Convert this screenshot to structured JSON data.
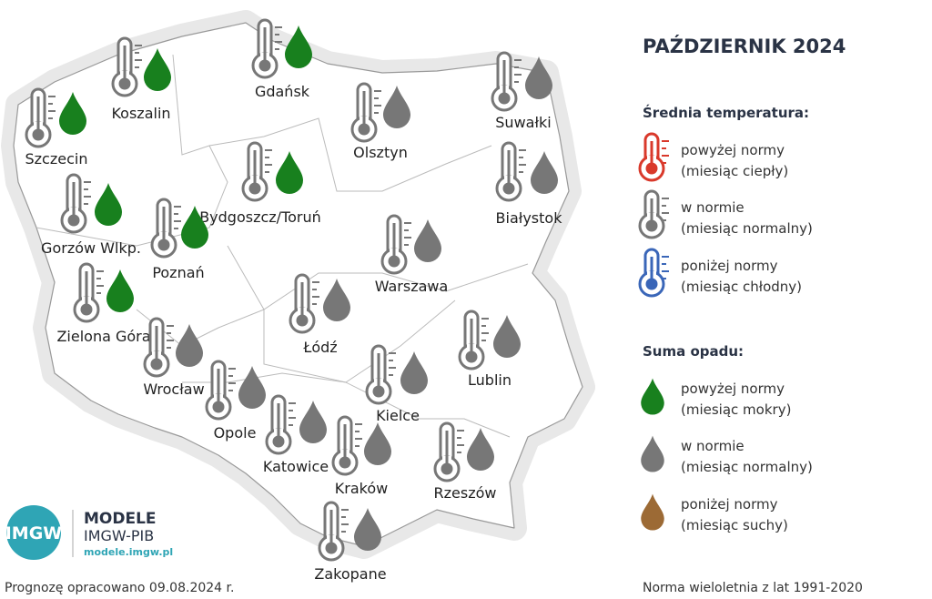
{
  "title": "PAŹDZIERNIK 2024",
  "legend": {
    "temp_title": "Średnia temperatura:",
    "temp_items": [
      {
        "line1": "powyżej normy",
        "line2": "(miesiąc ciepły)",
        "color": "#d9392b"
      },
      {
        "line1": "w normie",
        "line2": "(miesiąc normalny)",
        "color": "#777777"
      },
      {
        "line1": "poniżej normy",
        "line2": "(miesiąc chłodny)",
        "color": "#3a66b8"
      }
    ],
    "precip_title": "Suma opadu:",
    "precip_items": [
      {
        "line1": "powyżej normy",
        "line2": "(miesiąc mokry)",
        "color": "#18801e"
      },
      {
        "line1": "w normie",
        "line2": "(miesiąc normalny)",
        "color": "#777777"
      },
      {
        "line1": "poniżej normy",
        "line2": "(miesiąc suchy)",
        "color": "#9c6a35"
      }
    ]
  },
  "cities": [
    {
      "name": "Szczecin",
      "thermo_color": "#777777",
      "drop_color": "#18801e"
    },
    {
      "name": "Koszalin",
      "thermo_color": "#777777",
      "drop_color": "#18801e"
    },
    {
      "name": "Gdańsk",
      "thermo_color": "#777777",
      "drop_color": "#18801e"
    },
    {
      "name": "Olsztyn",
      "thermo_color": "#777777",
      "drop_color": "#777777"
    },
    {
      "name": "Suwałki",
      "thermo_color": "#777777",
      "drop_color": "#777777"
    },
    {
      "name": "Białystok",
      "thermo_color": "#777777",
      "drop_color": "#777777"
    },
    {
      "name": "Bydgoszcz/Toruń",
      "thermo_color": "#777777",
      "drop_color": "#18801e"
    },
    {
      "name": "Gorzów Wlkp.",
      "thermo_color": "#777777",
      "drop_color": "#18801e"
    },
    {
      "name": "Poznań",
      "thermo_color": "#777777",
      "drop_color": "#18801e"
    },
    {
      "name": "Warszawa",
      "thermo_color": "#777777",
      "drop_color": "#777777"
    },
    {
      "name": "Zielona Góra",
      "thermo_color": "#777777",
      "drop_color": "#18801e"
    },
    {
      "name": "Łódź",
      "thermo_color": "#777777",
      "drop_color": "#777777"
    },
    {
      "name": "Lublin",
      "thermo_color": "#777777",
      "drop_color": "#777777"
    },
    {
      "name": "Wrocław",
      "thermo_color": "#777777",
      "drop_color": "#777777"
    },
    {
      "name": "Kielce",
      "thermo_color": "#777777",
      "drop_color": "#777777"
    },
    {
      "name": "Opole",
      "thermo_color": "#777777",
      "drop_color": "#777777"
    },
    {
      "name": "Katowice",
      "thermo_color": "#777777",
      "drop_color": "#777777"
    },
    {
      "name": "Kraków",
      "thermo_color": "#777777",
      "drop_color": "#777777"
    },
    {
      "name": "Rzeszów",
      "thermo_color": "#777777",
      "drop_color": "#777777"
    },
    {
      "name": "Zakopane",
      "thermo_color": "#777777",
      "drop_color": "#777777"
    }
  ],
  "logo": {
    "mark": "IMGW",
    "name": "MODELE",
    "org": "IMGW-PIB",
    "url": "modele.imgw.pl"
  },
  "footer": {
    "left": "Prognozę opracowano 09.08.2024 r.",
    "right": "Norma wieloletnia z lat 1991-2020"
  }
}
